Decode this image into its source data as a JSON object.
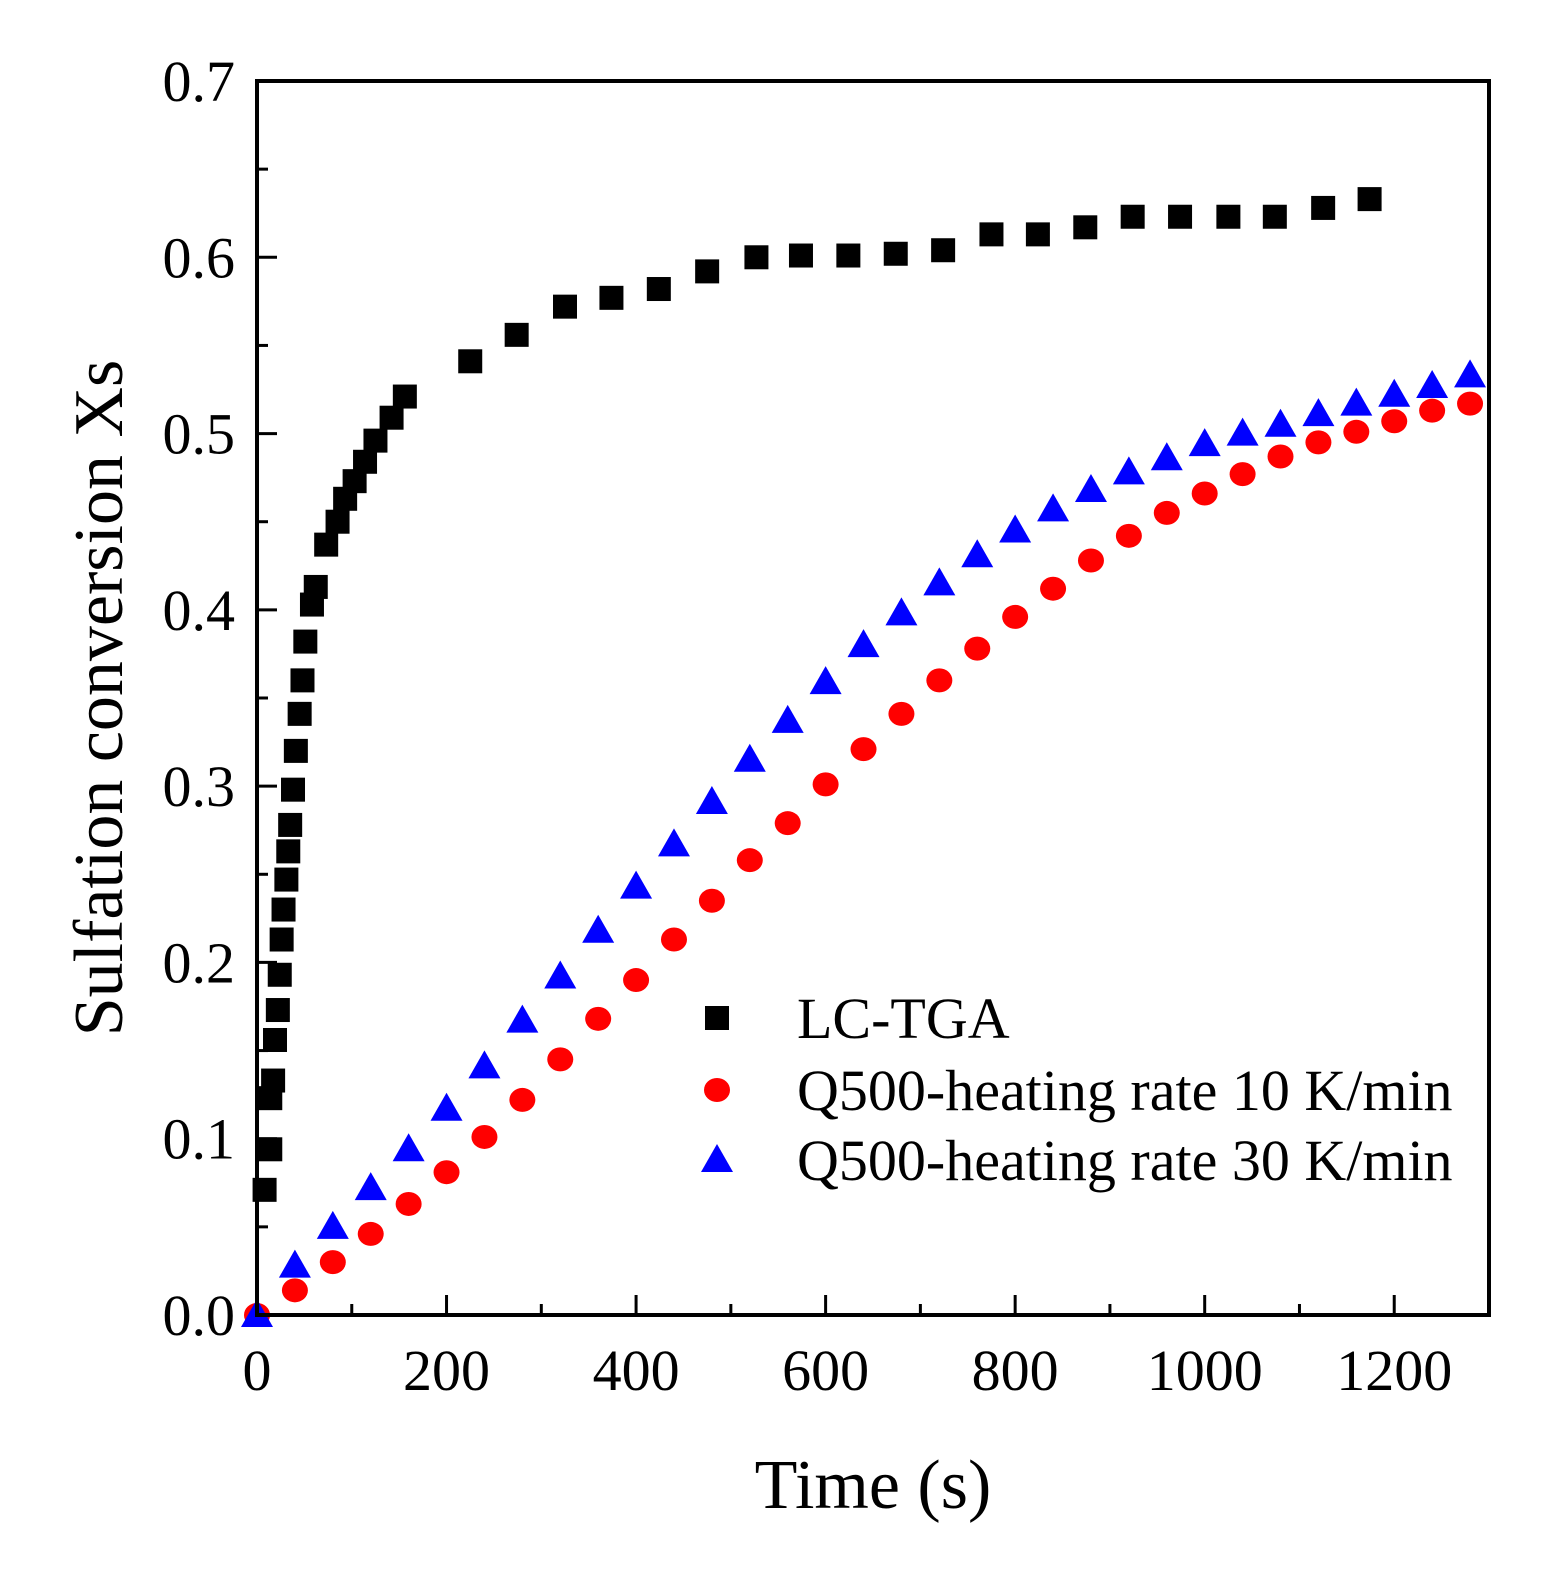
{
  "chart_data": {
    "type": "scatter",
    "xlabel": "Time (s)",
    "ylabel": "Sulfation conversion Xs",
    "xlim": [
      0,
      1300
    ],
    "ylim": [
      0,
      0.7
    ],
    "xticks": [
      0,
      200,
      400,
      600,
      800,
      1000,
      1200
    ],
    "xtick_labels": [
      "0",
      "200",
      "400",
      "600",
      "800",
      "1000",
      "1200"
    ],
    "yticks": [
      0,
      0.1,
      0.2,
      0.3,
      0.4,
      0.5,
      0.6,
      0.7
    ],
    "ytick_labels": [
      "0.0",
      "0.1",
      "0.2",
      "0.3",
      "0.4",
      "0.5",
      "0.6",
      "0.7"
    ],
    "grid": false,
    "legend_placement": "bottom-right",
    "series": [
      {
        "name": "LC-TGA",
        "marker": "square",
        "color": "#000000",
        "x": [
          8,
          14,
          14,
          17,
          19,
          22,
          24,
          26,
          28,
          31,
          33,
          35,
          38,
          41,
          45,
          48,
          51,
          58,
          62,
          73,
          85,
          93,
          103,
          114,
          125,
          142,
          156,
          225,
          274,
          325,
          374,
          424,
          475,
          527,
          574,
          624,
          674,
          724,
          775,
          824,
          874,
          924,
          974,
          1025,
          1074,
          1125,
          1174
        ],
        "y": [
          0.071,
          0.094,
          0.123,
          0.133,
          0.156,
          0.173,
          0.193,
          0.213,
          0.23,
          0.247,
          0.263,
          0.278,
          0.298,
          0.32,
          0.341,
          0.36,
          0.382,
          0.403,
          0.413,
          0.437,
          0.45,
          0.463,
          0.473,
          0.484,
          0.496,
          0.509,
          0.521,
          0.541,
          0.556,
          0.572,
          0.577,
          0.582,
          0.592,
          0.6,
          0.601,
          0.601,
          0.602,
          0.604,
          0.613,
          0.613,
          0.617,
          0.623,
          0.623,
          0.623,
          0.623,
          0.628,
          0.633
        ]
      },
      {
        "name": "Q500-heating rate 10 K/min",
        "marker": "circle",
        "color": "#ff0000",
        "x": [
          0,
          40,
          80,
          120,
          160,
          200,
          240,
          280,
          320,
          360,
          400,
          440,
          480,
          520,
          560,
          600,
          640,
          680,
          720,
          760,
          800,
          840,
          880,
          920,
          960,
          1000,
          1040,
          1080,
          1120,
          1160,
          1200,
          1240,
          1280
        ],
        "y": [
          0,
          0.014,
          0.03,
          0.046,
          0.063,
          0.081,
          0.101,
          0.122,
          0.145,
          0.168,
          0.19,
          0.213,
          0.235,
          0.258,
          0.279,
          0.301,
          0.321,
          0.341,
          0.36,
          0.378,
          0.396,
          0.412,
          0.428,
          0.442,
          0.455,
          0.466,
          0.477,
          0.487,
          0.495,
          0.501,
          0.507,
          0.513,
          0.517
        ]
      },
      {
        "name": "Q500-heating rate 30 K/min",
        "marker": "triangle",
        "color": "#0000ff",
        "x": [
          0,
          40,
          80,
          120,
          160,
          200,
          240,
          280,
          320,
          360,
          400,
          440,
          480,
          520,
          560,
          600,
          640,
          680,
          720,
          760,
          800,
          840,
          880,
          920,
          960,
          1000,
          1040,
          1080,
          1120,
          1160,
          1200,
          1240,
          1280
        ],
        "y": [
          0,
          0.028,
          0.05,
          0.072,
          0.094,
          0.117,
          0.141,
          0.167,
          0.192,
          0.218,
          0.243,
          0.267,
          0.291,
          0.315,
          0.337,
          0.359,
          0.38,
          0.398,
          0.415,
          0.431,
          0.445,
          0.457,
          0.468,
          0.478,
          0.486,
          0.494,
          0.5,
          0.505,
          0.511,
          0.517,
          0.522,
          0.527,
          0.533
        ]
      }
    ]
  }
}
